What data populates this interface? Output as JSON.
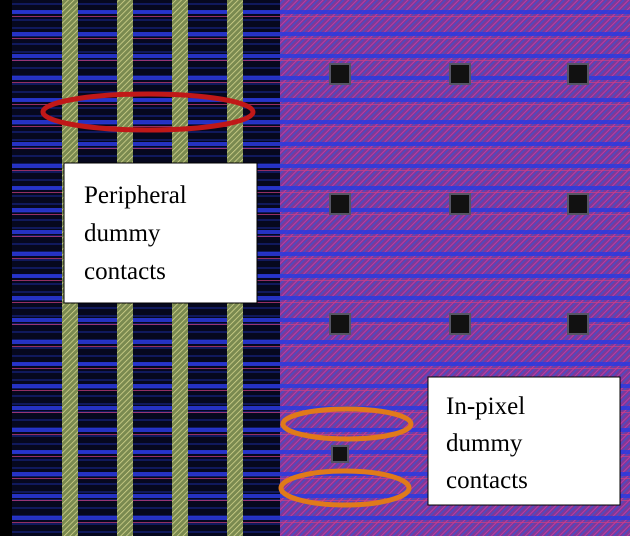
{
  "annotations": [
    {
      "lines": [
        "Peripheral",
        "dummy",
        "contacts"
      ]
    },
    {
      "lines": [
        "In-pixel",
        "dummy",
        "contacts"
      ]
    }
  ]
}
